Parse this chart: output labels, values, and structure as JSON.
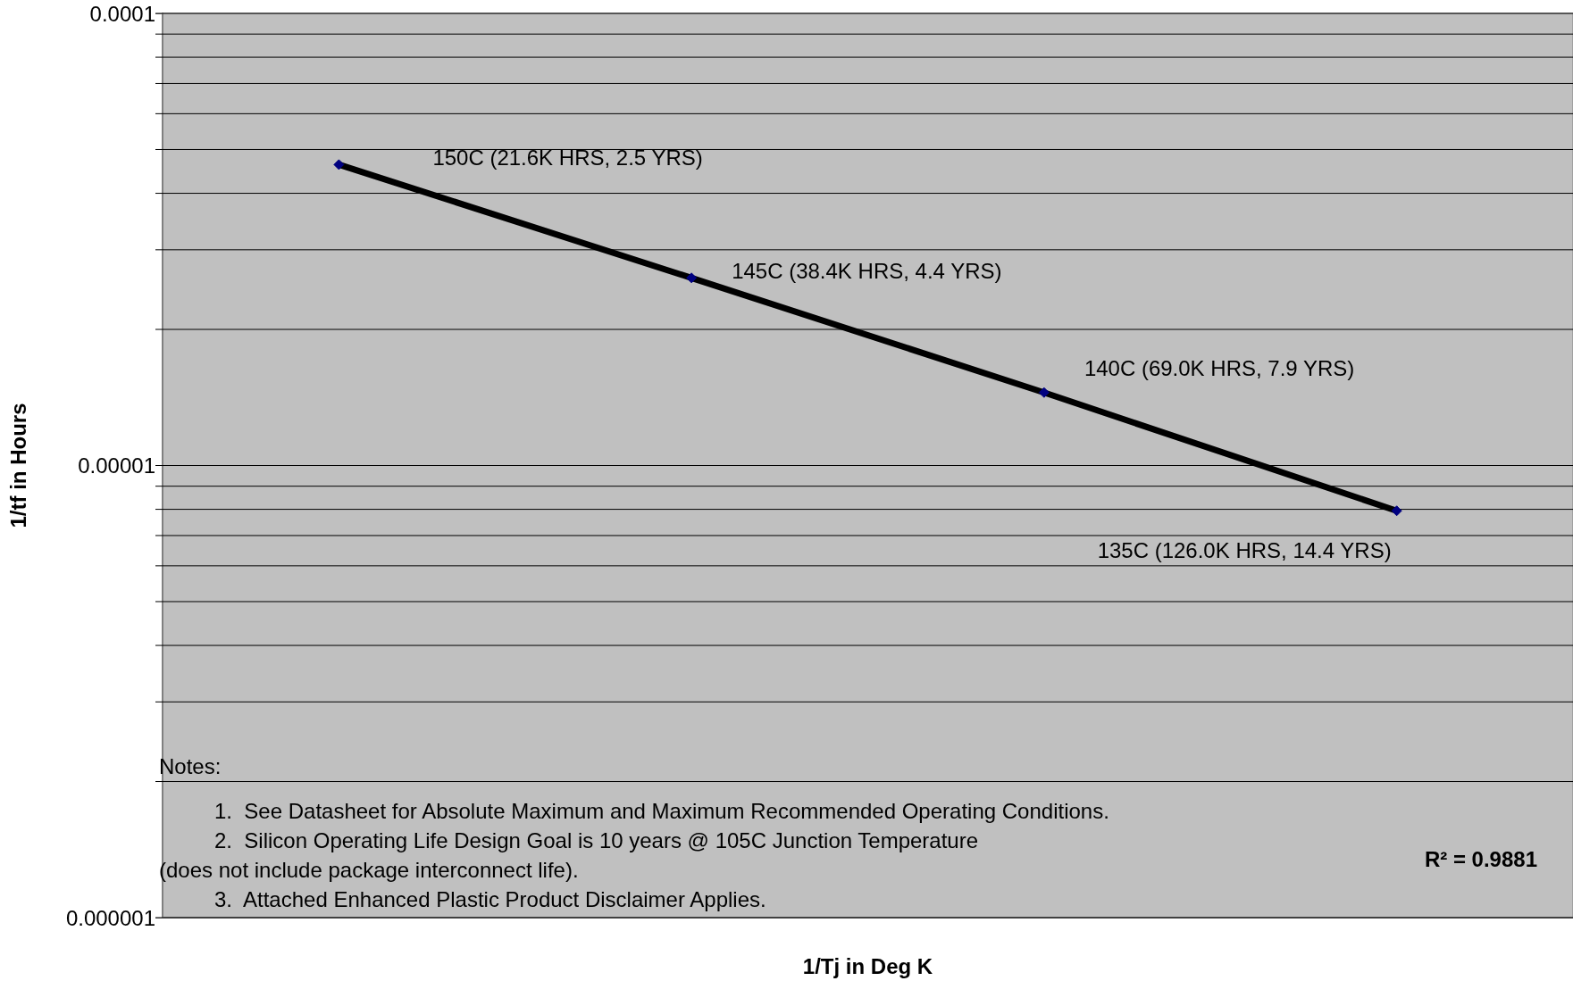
{
  "chart_data": {
    "type": "line",
    "xlabel": "1/Tj in Deg K",
    "ylabel": "1/tf in Hours",
    "categories": [
      null,
      null,
      null,
      null
    ],
    "series": [
      {
        "color": "#000000",
        "values": [
          4.63e-05,
          2.6e-05,
          1.45e-05,
          7.94e-06
        ]
      }
    ],
    "log": "y",
    "ylim": [
      1e-06,
      0.0001
    ],
    "yticks": [
      {
        "value": 1e-06,
        "label": "0.000001"
      },
      {
        "value": 2e-06,
        "label": null
      },
      {
        "value": 3e-06,
        "label": null
      },
      {
        "value": 4e-06,
        "label": null
      },
      {
        "value": 5e-06,
        "label": null
      },
      {
        "value": 6e-06,
        "label": null
      },
      {
        "value": 7e-06,
        "label": null
      },
      {
        "value": 8e-06,
        "label": null
      },
      {
        "value": 9e-06,
        "label": null
      },
      {
        "value": 1e-05,
        "label": "0.00001"
      },
      {
        "value": 2e-05,
        "label": null
      },
      {
        "value": 3e-05,
        "label": null
      },
      {
        "value": 4e-05,
        "label": null
      },
      {
        "value": 5e-05,
        "label": null
      },
      {
        "value": 6e-05,
        "label": null
      },
      {
        "value": 7e-05,
        "label": null
      },
      {
        "value": 8e-05,
        "label": null
      },
      {
        "value": 9e-05,
        "label": null
      },
      {
        "value": 0.0001,
        "label": "0.0001"
      }
    ],
    "grid": "y",
    "marker": "diamond",
    "line_style": "solid",
    "tick_labels": "y",
    "annotations": [
      "150C (21.6K HRS, 2.5 YRS)",
      "145C (38.4K HRS, 4.4 YRS)",
      "140C (69.0K HRS, 7.9 YRS)",
      "135C (126.0K HRS, 14.4 YRS)",
      "Notes:",
      "1.  See Datasheet for Absolute Maximum and Maximum Recommended Operating Conditions.",
      "2.  Silicon Operating Life Design Goal is 10 years @ 105C Junction Temperature",
      "(does not include package interconnect life).",
      "3.  Attached Enhanced Plastic Product Disclaimer Applies.",
      "R² = 0.9881"
    ]
  }
}
